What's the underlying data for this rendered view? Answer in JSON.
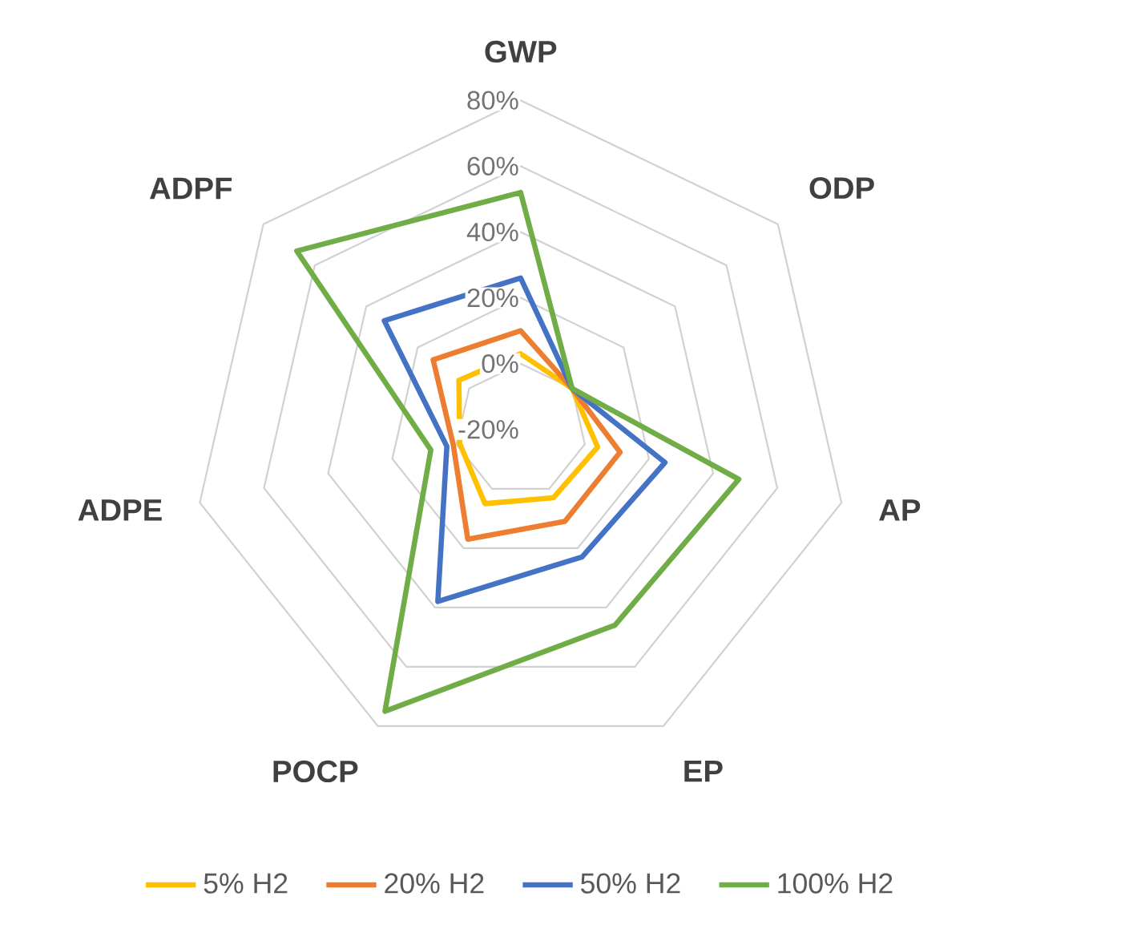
{
  "chart_data": {
    "type": "radar",
    "categories": [
      "GWP",
      "ODP",
      "AP",
      "EP",
      "POCP",
      "ADPE",
      "ADPF"
    ],
    "ylim": [
      -20,
      80
    ],
    "yticks": [
      {
        "value": -20,
        "label": "-20%"
      },
      {
        "value": 0,
        "label": "0%"
      },
      {
        "value": 20,
        "label": "20%"
      },
      {
        "value": 40,
        "label": "40%"
      },
      {
        "value": 60,
        "label": "60%"
      },
      {
        "value": 80,
        "label": "80%"
      }
    ],
    "grid": true,
    "legend": "bottom",
    "series": [
      {
        "name": "5% H2",
        "color": "#ffc000",
        "values": [
          3,
          0,
          4,
          3,
          5,
          -1,
          4
        ]
      },
      {
        "name": "20% H2",
        "color": "#ed7d31",
        "values": [
          10,
          0,
          11,
          11,
          17,
          1,
          14
        ]
      },
      {
        "name": "50% H2",
        "color": "#4472c4",
        "values": [
          26,
          0,
          25,
          23,
          38,
          3,
          33
        ]
      },
      {
        "name": "100% H2",
        "color": "#70ad47",
        "values": [
          52,
          0,
          48,
          46,
          75,
          8,
          67
        ]
      }
    ]
  }
}
